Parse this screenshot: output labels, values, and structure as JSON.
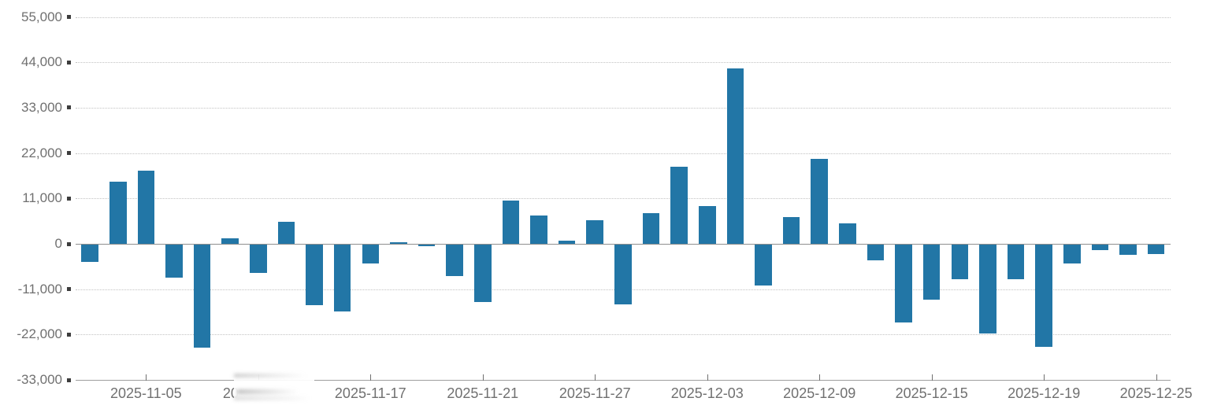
{
  "chart_data": {
    "type": "bar",
    "title": "",
    "xlabel": "",
    "ylabel": "",
    "x": [
      "2025-11-03",
      "2025-11-04",
      "2025-11-05",
      "2025-11-06",
      "2025-11-07",
      "2025-11-10",
      "2025-11-11",
      "2025-11-12",
      "2025-11-13",
      "2025-11-14",
      "2025-11-17",
      "2025-11-18",
      "2025-11-19",
      "2025-11-20",
      "2025-11-21",
      "2025-11-24",
      "2025-11-25",
      "2025-11-26",
      "2025-11-27",
      "2025-11-28",
      "2025-12-01",
      "2025-12-02",
      "2025-12-03",
      "2025-12-04",
      "2025-12-05",
      "2025-12-08",
      "2025-12-09",
      "2025-12-10",
      "2025-12-11",
      "2025-12-12",
      "2025-12-15",
      "2025-12-16",
      "2025-12-17",
      "2025-12-18",
      "2025-12-19",
      "2025-12-22",
      "2025-12-23",
      "2025-12-24",
      "2025-12-25"
    ],
    "values": [
      -4100,
      15100,
      17700,
      -8100,
      -24900,
      1300,
      -6800,
      5300,
      -14700,
      -16200,
      -4600,
      400,
      -450,
      -7600,
      -13900,
      10500,
      6800,
      700,
      5800,
      -14500,
      7500,
      18600,
      9200,
      42500,
      -10000,
      6500,
      20500,
      4900,
      -3800,
      -18900,
      -13300,
      -8400,
      -21600,
      -8400,
      -24800,
      -4500,
      -1400,
      -2500,
      -2300
    ],
    "ylim": [
      -33000,
      55000
    ],
    "y_tick_values": [
      55000,
      44000,
      33000,
      22000,
      11000,
      0,
      -11000,
      -22000,
      -33000
    ],
    "y_tick_labels": [
      "55,000",
      "44,000",
      "33,000",
      "22,000",
      "11,000",
      "0",
      "-11,000",
      "-22,000",
      "-33,000"
    ],
    "x_tick_labels": [
      {
        "text": "2025-11-05",
        "bar_index": 2,
        "redacted": false
      },
      {
        "text": "20",
        "bar_index": 6,
        "redacted": true
      },
      {
        "text": "2025-11-17",
        "bar_index": 10,
        "redacted": false
      },
      {
        "text": "2025-11-21",
        "bar_index": 14,
        "redacted": false
      },
      {
        "text": "2025-11-27",
        "bar_index": 18,
        "redacted": false
      },
      {
        "text": "2025-12-03",
        "bar_index": 22,
        "redacted": false
      },
      {
        "text": "2025-12-09",
        "bar_index": 26,
        "redacted": false
      },
      {
        "text": "2025-12-15",
        "bar_index": 30,
        "redacted": false
      },
      {
        "text": "2025-12-19",
        "bar_index": 34,
        "redacted": false
      },
      {
        "text": "2025-12-25",
        "bar_index": 38,
        "redacted": false
      }
    ],
    "grid": {
      "horizontal": true,
      "style": "dotted"
    },
    "legend": "none"
  },
  "colors": {
    "background": "#ffffff",
    "bar": "#2276a6",
    "grid_line": "#c2c2c2",
    "zero_line": "#8f8f8f",
    "axis_line": "#9e9e9e",
    "tick_square": "#3d3d3d",
    "label_text": "#707070"
  }
}
